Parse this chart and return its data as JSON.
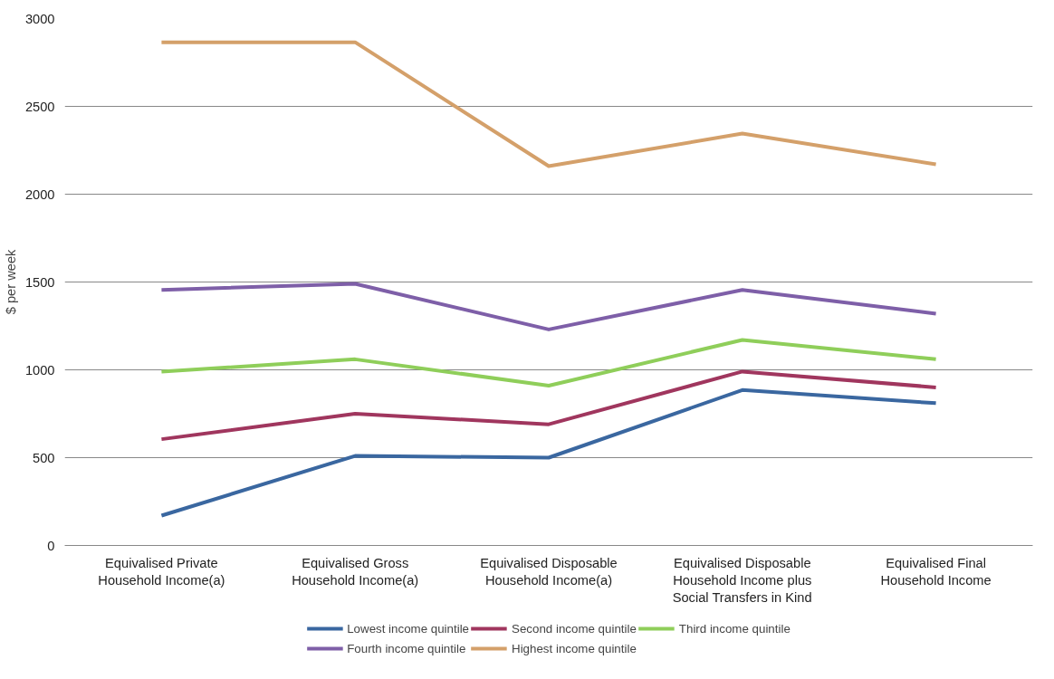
{
  "chart_data": {
    "type": "line",
    "ylabel": "$ per week",
    "categories": [
      "Equivalised Private Household Income(a)",
      "Equivalised Gross Household Income(a)",
      "Equivalised Disposable Household Income(a)",
      "Equivalised Disposable Household Income plus Social Transfers in Kind",
      "Equivalised Final Household Income"
    ],
    "series": [
      {
        "name": "Lowest income quintile",
        "color": "#3a67a0",
        "values": [
          170,
          510,
          500,
          885,
          810
        ]
      },
      {
        "name": "Second income quintile",
        "color": "#a0365e",
        "values": [
          605,
          750,
          690,
          990,
          900
        ]
      },
      {
        "name": "Third income quintile",
        "color": "#8fce5a",
        "values": [
          990,
          1060,
          910,
          1170,
          1060
        ]
      },
      {
        "name": "Fourth income quintile",
        "color": "#7e5fa8",
        "values": [
          1455,
          1490,
          1230,
          1455,
          1320
        ]
      },
      {
        "name": "Highest income quintile",
        "color": "#d4a06a",
        "values": [
          2865,
          2865,
          2160,
          2345,
          2170
        ]
      }
    ],
    "ylim": [
      0,
      3000
    ],
    "yticks": [
      0,
      500,
      1000,
      1500,
      2000,
      2500,
      3000
    ],
    "grid": "y",
    "legend": "bottom",
    "marker": "none",
    "line_style": "solid"
  }
}
